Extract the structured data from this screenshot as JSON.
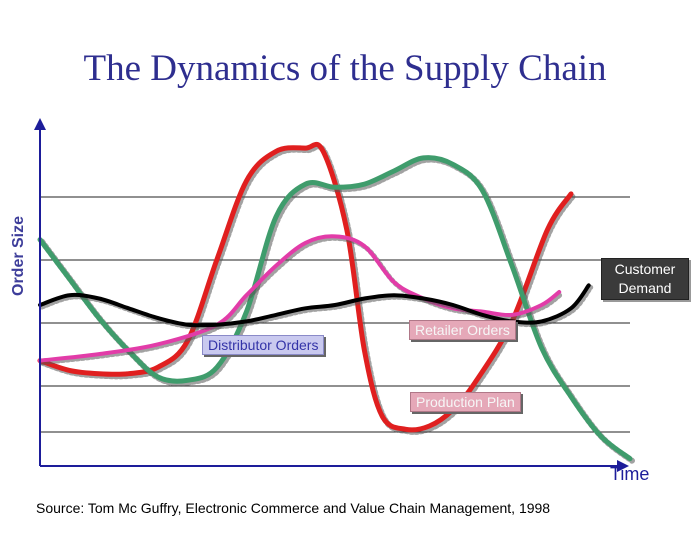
{
  "chart_data": {
    "type": "line",
    "title": "The Dynamics of the Supply Chain",
    "xlabel": "Time",
    "ylabel": "Order Size",
    "source": "Source: Tom Mc Guffry, Electronic Commerce and Value Chain Management, 1998",
    "x_range": [
      0,
      100
    ],
    "y_range": [
      0,
      100
    ],
    "grid": "horizontal",
    "series": [
      {
        "name": "Production Plan",
        "color": "#e01f1f",
        "points": [
          [
            0,
            31
          ],
          [
            5,
            28
          ],
          [
            10,
            27
          ],
          [
            15,
            27
          ],
          [
            20,
            29
          ],
          [
            25,
            37
          ],
          [
            30,
            62
          ],
          [
            35,
            86
          ],
          [
            40,
            95
          ],
          [
            45,
            96
          ],
          [
            48,
            95
          ],
          [
            52,
            71
          ],
          [
            55,
            34
          ],
          [
            58,
            14
          ],
          [
            62,
            10
          ],
          [
            66,
            11
          ],
          [
            70,
            16
          ],
          [
            74,
            25
          ],
          [
            80,
            43
          ],
          [
            86,
            71
          ],
          [
            90,
            82
          ]
        ]
      },
      {
        "name": "Distributor Orders",
        "color": "#3f9c6c",
        "points": [
          [
            0,
            68
          ],
          [
            5,
            56
          ],
          [
            10,
            44
          ],
          [
            15,
            34
          ],
          [
            20,
            26
          ],
          [
            25,
            25
          ],
          [
            30,
            29
          ],
          [
            35,
            46
          ],
          [
            40,
            75
          ],
          [
            45,
            85
          ],
          [
            50,
            84
          ],
          [
            55,
            85
          ],
          [
            60,
            89
          ],
          [
            65,
            93
          ],
          [
            70,
            91
          ],
          [
            75,
            83
          ],
          [
            80,
            60
          ],
          [
            85,
            35
          ],
          [
            90,
            20
          ],
          [
            95,
            8
          ],
          [
            100,
            1
          ]
        ]
      },
      {
        "name": "Retailer Orders",
        "color": "#e23ca8",
        "points": [
          [
            0,
            31
          ],
          [
            10,
            33
          ],
          [
            20,
            36
          ],
          [
            30,
            42
          ],
          [
            35,
            51
          ],
          [
            40,
            60
          ],
          [
            45,
            67
          ],
          [
            50,
            69
          ],
          [
            55,
            66
          ],
          [
            60,
            55
          ],
          [
            65,
            50
          ],
          [
            70,
            47
          ],
          [
            75,
            46
          ],
          [
            80,
            45
          ],
          [
            85,
            48
          ],
          [
            88,
            52
          ]
        ]
      },
      {
        "name": "Customer Demand",
        "color": "#000000",
        "points": [
          [
            0,
            48
          ],
          [
            5,
            51
          ],
          [
            10,
            50
          ],
          [
            15,
            47
          ],
          [
            20,
            44
          ],
          [
            25,
            42
          ],
          [
            30,
            42
          ],
          [
            35,
            43
          ],
          [
            40,
            45
          ],
          [
            45,
            47
          ],
          [
            50,
            48
          ],
          [
            55,
            50
          ],
          [
            60,
            51
          ],
          [
            65,
            50
          ],
          [
            70,
            48
          ],
          [
            75,
            45
          ],
          [
            80,
            43
          ],
          [
            85,
            43
          ],
          [
            90,
            47
          ],
          [
            93,
            54
          ]
        ]
      }
    ],
    "annotations": [
      {
        "text": "Distributor Orders",
        "series": "Distributor Orders"
      },
      {
        "text": "Retailer Orders",
        "series": "Retailer Orders"
      },
      {
        "text": "Production Plan",
        "series": "Production Plan"
      },
      {
        "text": "Customer Demand",
        "series": "Customer Demand"
      }
    ]
  }
}
